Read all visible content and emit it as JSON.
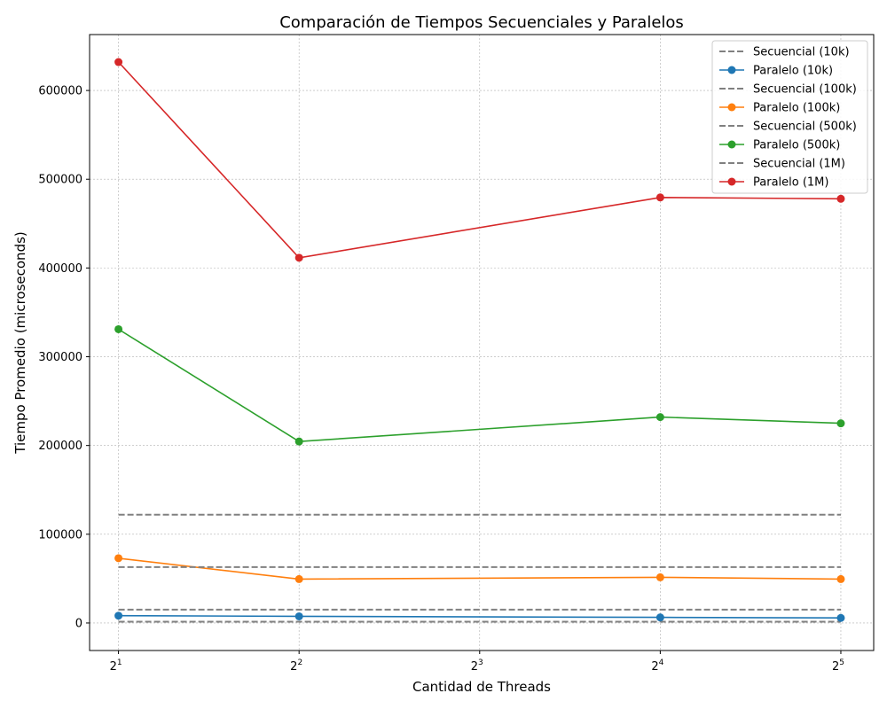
{
  "chart_data": {
    "type": "line",
    "title": "Comparación de Tiempos Secuenciales y Paralelos",
    "xlabel": "Cantidad de Threads",
    "ylabel": "Tiempo Promedio (microseconds)",
    "x": [
      2,
      4,
      16,
      32
    ],
    "x_scale": "log2",
    "x_ticks": [
      2,
      4,
      8,
      16,
      32
    ],
    "x_tick_labels": [
      {
        "base": "2",
        "exp": "1"
      },
      {
        "base": "2",
        "exp": "2"
      },
      {
        "base": "2",
        "exp": "3"
      },
      {
        "base": "2",
        "exp": "4"
      },
      {
        "base": "2",
        "exp": "5"
      }
    ],
    "y_ticks": [
      0,
      100000,
      200000,
      300000,
      400000,
      500000,
      600000
    ],
    "y_tick_labels": [
      "0",
      "100000",
      "200000",
      "300000",
      "400000",
      "500000",
      "600000"
    ],
    "xlim": [
      1.79,
      36.3
    ],
    "ylim": [
      -31000,
      663000
    ],
    "grid": true,
    "legend_position": "top-right",
    "series": [
      {
        "name": "Secuencial (10k)",
        "style": "dashed",
        "color": "#808080",
        "values": [
          1500,
          1500,
          1500,
          1500
        ]
      },
      {
        "name": "Paralelo (10k)",
        "style": "solid-marker",
        "color": "#1f77b4",
        "values": [
          8200,
          7500,
          6300,
          5700
        ]
      },
      {
        "name": "Secuencial (100k)",
        "style": "dashed",
        "color": "#808080",
        "values": [
          15000,
          15000,
          15000,
          15000
        ]
      },
      {
        "name": "Paralelo (100k)",
        "style": "solid-marker",
        "color": "#ff7f0e",
        "values": [
          73000,
          49500,
          51500,
          49500
        ]
      },
      {
        "name": "Secuencial (500k)",
        "style": "dashed",
        "color": "#808080",
        "values": [
          63000,
          63000,
          63000,
          63000
        ]
      },
      {
        "name": "Paralelo (500k)",
        "style": "solid-marker",
        "color": "#2ca02c",
        "values": [
          331000,
          204500,
          232000,
          225000
        ]
      },
      {
        "name": "Secuencial (1M)",
        "style": "dashed",
        "color": "#808080",
        "values": [
          122000,
          122000,
          122000,
          122000
        ]
      },
      {
        "name": "Paralelo (1M)",
        "style": "solid-marker",
        "color": "#d62728",
        "values": [
          632000,
          411500,
          479500,
          478000
        ]
      }
    ]
  }
}
